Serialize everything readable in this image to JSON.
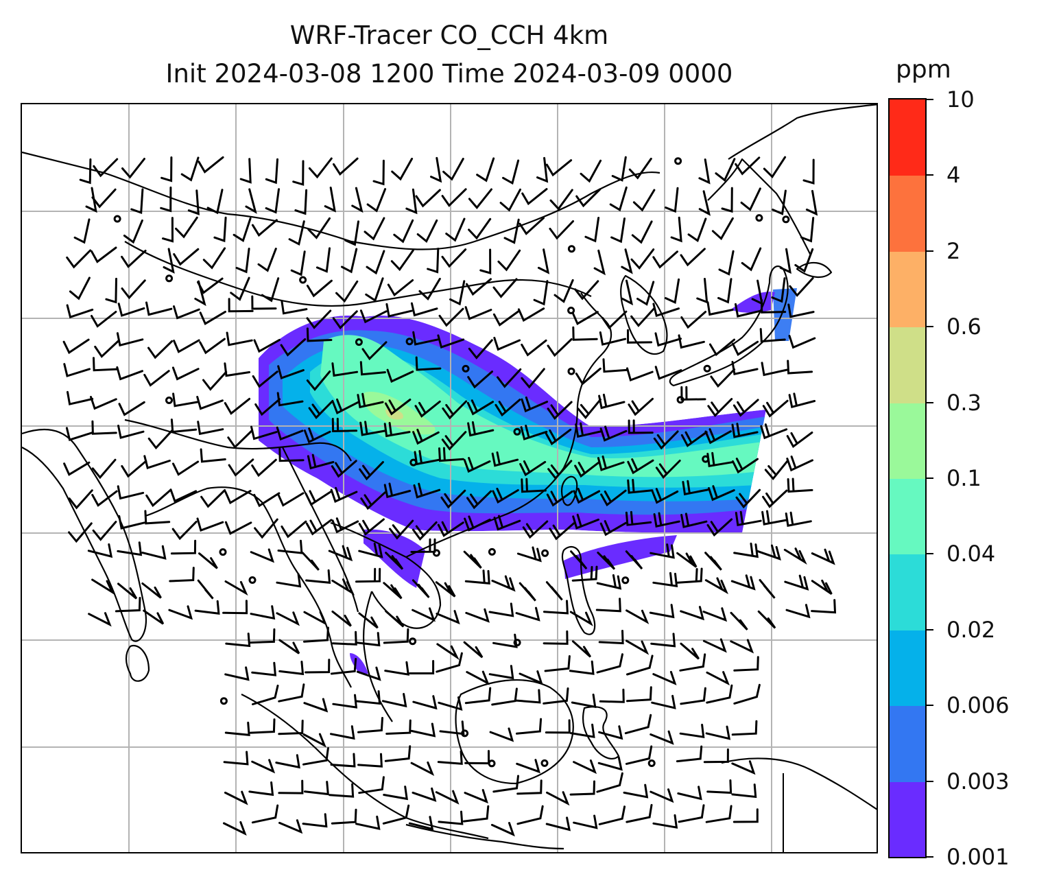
{
  "title": {
    "line1": "WRF-Tracer CO_CCH 4km",
    "line2": "Init 2024-03-08 1200 Time 2024-03-09 0000"
  },
  "colorbar": {
    "units": "ppm",
    "ticks": [
      "0.001",
      "0.003",
      "0.006",
      "0.02",
      "0.04",
      "0.1",
      "0.3",
      "0.6",
      "2",
      "4",
      "10"
    ],
    "colors": [
      "#6a2cff",
      "#3377f2",
      "#05b1ea",
      "#2cdcd8",
      "#66f9c0",
      "#9af99a",
      "#cfdf88",
      "#fdb066",
      "#fd723d",
      "#ff2a18"
    ]
  },
  "map": {
    "coastline_color": "#000000",
    "gridline_color": "#b3b3b3",
    "wind_barb_color": "#000000",
    "tracer_plume": "CO concentration plume over East Asia, transported east-northeast across the western Pacific"
  }
}
